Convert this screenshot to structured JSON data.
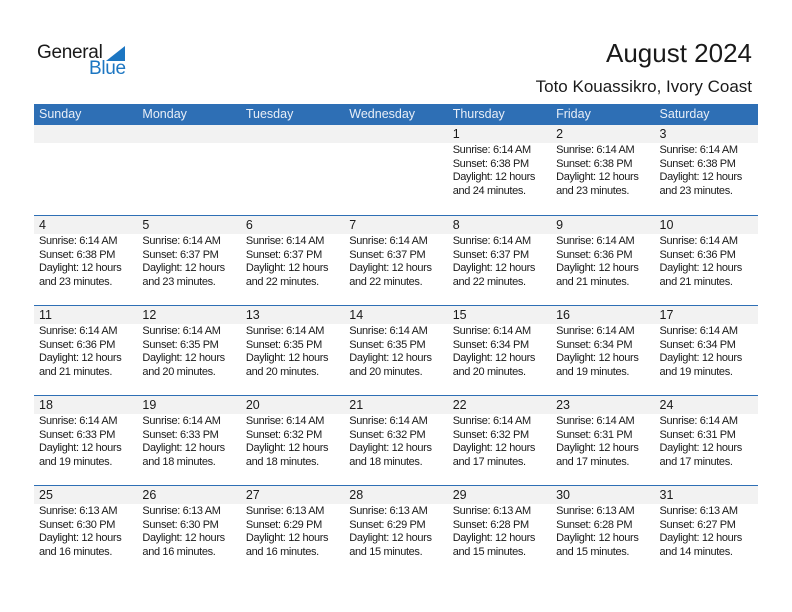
{
  "logo": {
    "text_general": "General",
    "text_blue": "Blue",
    "color": "#1c76c2"
  },
  "header": {
    "title": "August 2024",
    "location": "Toto Kouassikro, Ivory Coast"
  },
  "colors": {
    "header_bg": "#2e6fb5",
    "date_strip": "#f2f2f2"
  },
  "weekdays": [
    "Sunday",
    "Monday",
    "Tuesday",
    "Wednesday",
    "Thursday",
    "Friday",
    "Saturday"
  ],
  "weeks": [
    [
      null,
      null,
      null,
      null,
      {
        "day": "1",
        "sunrise": "Sunrise: 6:14 AM",
        "sunset": "Sunset: 6:38 PM",
        "daylight1": "Daylight: 12 hours",
        "daylight2": "and 24 minutes."
      },
      {
        "day": "2",
        "sunrise": "Sunrise: 6:14 AM",
        "sunset": "Sunset: 6:38 PM",
        "daylight1": "Daylight: 12 hours",
        "daylight2": "and 23 minutes."
      },
      {
        "day": "3",
        "sunrise": "Sunrise: 6:14 AM",
        "sunset": "Sunset: 6:38 PM",
        "daylight1": "Daylight: 12 hours",
        "daylight2": "and 23 minutes."
      }
    ],
    [
      {
        "day": "4",
        "sunrise": "Sunrise: 6:14 AM",
        "sunset": "Sunset: 6:38 PM",
        "daylight1": "Daylight: 12 hours",
        "daylight2": "and 23 minutes."
      },
      {
        "day": "5",
        "sunrise": "Sunrise: 6:14 AM",
        "sunset": "Sunset: 6:37 PM",
        "daylight1": "Daylight: 12 hours",
        "daylight2": "and 23 minutes."
      },
      {
        "day": "6",
        "sunrise": "Sunrise: 6:14 AM",
        "sunset": "Sunset: 6:37 PM",
        "daylight1": "Daylight: 12 hours",
        "daylight2": "and 22 minutes."
      },
      {
        "day": "7",
        "sunrise": "Sunrise: 6:14 AM",
        "sunset": "Sunset: 6:37 PM",
        "daylight1": "Daylight: 12 hours",
        "daylight2": "and 22 minutes."
      },
      {
        "day": "8",
        "sunrise": "Sunrise: 6:14 AM",
        "sunset": "Sunset: 6:37 PM",
        "daylight1": "Daylight: 12 hours",
        "daylight2": "and 22 minutes."
      },
      {
        "day": "9",
        "sunrise": "Sunrise: 6:14 AM",
        "sunset": "Sunset: 6:36 PM",
        "daylight1": "Daylight: 12 hours",
        "daylight2": "and 21 minutes."
      },
      {
        "day": "10",
        "sunrise": "Sunrise: 6:14 AM",
        "sunset": "Sunset: 6:36 PM",
        "daylight1": "Daylight: 12 hours",
        "daylight2": "and 21 minutes."
      }
    ],
    [
      {
        "day": "11",
        "sunrise": "Sunrise: 6:14 AM",
        "sunset": "Sunset: 6:36 PM",
        "daylight1": "Daylight: 12 hours",
        "daylight2": "and 21 minutes."
      },
      {
        "day": "12",
        "sunrise": "Sunrise: 6:14 AM",
        "sunset": "Sunset: 6:35 PM",
        "daylight1": "Daylight: 12 hours",
        "daylight2": "and 20 minutes."
      },
      {
        "day": "13",
        "sunrise": "Sunrise: 6:14 AM",
        "sunset": "Sunset: 6:35 PM",
        "daylight1": "Daylight: 12 hours",
        "daylight2": "and 20 minutes."
      },
      {
        "day": "14",
        "sunrise": "Sunrise: 6:14 AM",
        "sunset": "Sunset: 6:35 PM",
        "daylight1": "Daylight: 12 hours",
        "daylight2": "and 20 minutes."
      },
      {
        "day": "15",
        "sunrise": "Sunrise: 6:14 AM",
        "sunset": "Sunset: 6:34 PM",
        "daylight1": "Daylight: 12 hours",
        "daylight2": "and 20 minutes."
      },
      {
        "day": "16",
        "sunrise": "Sunrise: 6:14 AM",
        "sunset": "Sunset: 6:34 PM",
        "daylight1": "Daylight: 12 hours",
        "daylight2": "and 19 minutes."
      },
      {
        "day": "17",
        "sunrise": "Sunrise: 6:14 AM",
        "sunset": "Sunset: 6:34 PM",
        "daylight1": "Daylight: 12 hours",
        "daylight2": "and 19 minutes."
      }
    ],
    [
      {
        "day": "18",
        "sunrise": "Sunrise: 6:14 AM",
        "sunset": "Sunset: 6:33 PM",
        "daylight1": "Daylight: 12 hours",
        "daylight2": "and 19 minutes."
      },
      {
        "day": "19",
        "sunrise": "Sunrise: 6:14 AM",
        "sunset": "Sunset: 6:33 PM",
        "daylight1": "Daylight: 12 hours",
        "daylight2": "and 18 minutes."
      },
      {
        "day": "20",
        "sunrise": "Sunrise: 6:14 AM",
        "sunset": "Sunset: 6:32 PM",
        "daylight1": "Daylight: 12 hours",
        "daylight2": "and 18 minutes."
      },
      {
        "day": "21",
        "sunrise": "Sunrise: 6:14 AM",
        "sunset": "Sunset: 6:32 PM",
        "daylight1": "Daylight: 12 hours",
        "daylight2": "and 18 minutes."
      },
      {
        "day": "22",
        "sunrise": "Sunrise: 6:14 AM",
        "sunset": "Sunset: 6:32 PM",
        "daylight1": "Daylight: 12 hours",
        "daylight2": "and 17 minutes."
      },
      {
        "day": "23",
        "sunrise": "Sunrise: 6:14 AM",
        "sunset": "Sunset: 6:31 PM",
        "daylight1": "Daylight: 12 hours",
        "daylight2": "and 17 minutes."
      },
      {
        "day": "24",
        "sunrise": "Sunrise: 6:14 AM",
        "sunset": "Sunset: 6:31 PM",
        "daylight1": "Daylight: 12 hours",
        "daylight2": "and 17 minutes."
      }
    ],
    [
      {
        "day": "25",
        "sunrise": "Sunrise: 6:13 AM",
        "sunset": "Sunset: 6:30 PM",
        "daylight1": "Daylight: 12 hours",
        "daylight2": "and 16 minutes."
      },
      {
        "day": "26",
        "sunrise": "Sunrise: 6:13 AM",
        "sunset": "Sunset: 6:30 PM",
        "daylight1": "Daylight: 12 hours",
        "daylight2": "and 16 minutes."
      },
      {
        "day": "27",
        "sunrise": "Sunrise: 6:13 AM",
        "sunset": "Sunset: 6:29 PM",
        "daylight1": "Daylight: 12 hours",
        "daylight2": "and 16 minutes."
      },
      {
        "day": "28",
        "sunrise": "Sunrise: 6:13 AM",
        "sunset": "Sunset: 6:29 PM",
        "daylight1": "Daylight: 12 hours",
        "daylight2": "and 15 minutes."
      },
      {
        "day": "29",
        "sunrise": "Sunrise: 6:13 AM",
        "sunset": "Sunset: 6:28 PM",
        "daylight1": "Daylight: 12 hours",
        "daylight2": "and 15 minutes."
      },
      {
        "day": "30",
        "sunrise": "Sunrise: 6:13 AM",
        "sunset": "Sunset: 6:28 PM",
        "daylight1": "Daylight: 12 hours",
        "daylight2": "and 15 minutes."
      },
      {
        "day": "31",
        "sunrise": "Sunrise: 6:13 AM",
        "sunset": "Sunset: 6:27 PM",
        "daylight1": "Daylight: 12 hours",
        "daylight2": "and 14 minutes."
      }
    ]
  ]
}
